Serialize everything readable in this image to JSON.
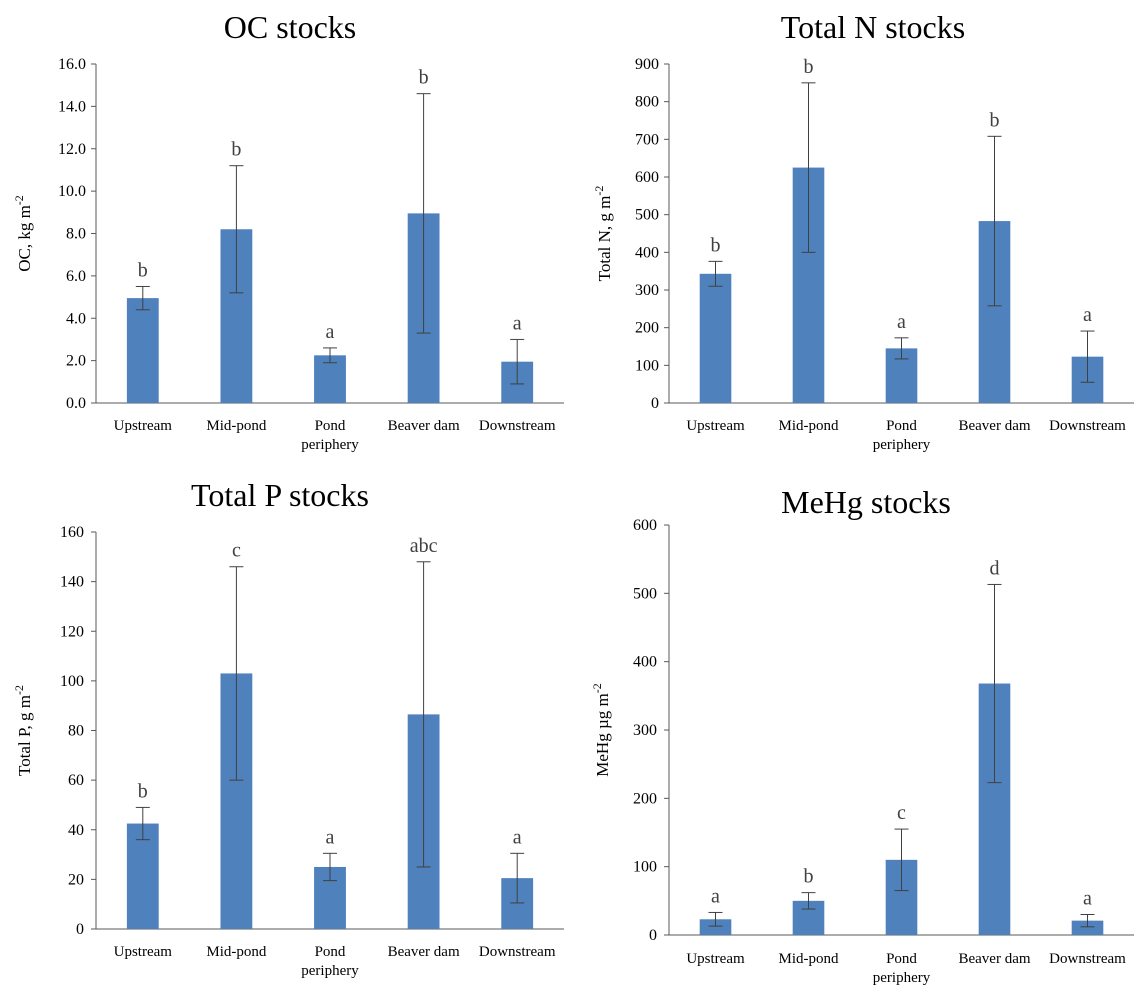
{
  "chart_data": [
    {
      "type": "bar",
      "title": "OC stocks",
      "ylabel": "OC, kg m",
      "ylabel_sup": "-2",
      "xlabel": "",
      "categories": [
        [
          "Upstream"
        ],
        [
          "Mid-pond"
        ],
        [
          "Pond",
          "periphery"
        ],
        [
          "Beaver dam"
        ],
        [
          "Downstream"
        ]
      ],
      "values": [
        4.95,
        8.2,
        2.25,
        8.95,
        1.95
      ],
      "error": [
        0.55,
        3.0,
        0.35,
        5.65,
        1.05
      ],
      "sig_letters": [
        "b",
        "b",
        "a",
        "b",
        "a"
      ],
      "ylim": [
        0,
        16
      ],
      "yticks": [
        "0.0",
        "2.0",
        "4.0",
        "6.0",
        "8.0",
        "10.0",
        "12.0",
        "14.0",
        "16.0"
      ],
      "grid": false,
      "legend": "none",
      "bar_color": "#4f81bd"
    },
    {
      "type": "bar",
      "title": "Total N stocks",
      "ylabel": "Total N, g m",
      "ylabel_sup": "-2",
      "xlabel": "",
      "categories": [
        [
          "Upstream"
        ],
        [
          "Mid-pond"
        ],
        [
          "Pond",
          "periphery"
        ],
        [
          "Beaver dam"
        ],
        [
          "Downstream"
        ]
      ],
      "values": [
        343,
        625,
        145,
        483,
        123
      ],
      "error": [
        33,
        225,
        28,
        225,
        68
      ],
      "sig_letters": [
        "b",
        "b",
        "a",
        "b",
        "a"
      ],
      "ylim": [
        0,
        900
      ],
      "yticks": [
        "0",
        "100",
        "200",
        "300",
        "400",
        "500",
        "600",
        "700",
        "800",
        "900"
      ],
      "grid": false,
      "legend": "none",
      "bar_color": "#4f81bd"
    },
    {
      "type": "bar",
      "title": "Total P stocks",
      "ylabel": "Total P, g m",
      "ylabel_sup": "-2",
      "xlabel": "",
      "categories": [
        [
          "Upstream"
        ],
        [
          "Mid-pond"
        ],
        [
          "Pond",
          "periphery"
        ],
        [
          "Beaver dam"
        ],
        [
          "Downstream"
        ]
      ],
      "values": [
        42.5,
        103,
        25,
        86.5,
        20.5
      ],
      "error": [
        6.5,
        43,
        5.5,
        61.5,
        10
      ],
      "sig_letters": [
        "b",
        "c",
        "a",
        "abc",
        "a"
      ],
      "ylim": [
        0,
        160
      ],
      "yticks": [
        "0",
        "20",
        "40",
        "60",
        "80",
        "100",
        "120",
        "140",
        "160"
      ],
      "grid": false,
      "legend": "none",
      "bar_color": "#4f81bd"
    },
    {
      "type": "bar",
      "title": "MeHg stocks",
      "ylabel": "MeHg µg m",
      "ylabel_sup": "-2",
      "xlabel": "",
      "categories": [
        [
          "Upstream"
        ],
        [
          "Mid-pond"
        ],
        [
          "Pond",
          "periphery"
        ],
        [
          "Beaver dam"
        ],
        [
          "Downstream"
        ]
      ],
      "values": [
        23,
        50,
        110,
        368,
        21
      ],
      "error": [
        10,
        12,
        45,
        145,
        9
      ],
      "sig_letters": [
        "a",
        "b",
        "c",
        "d",
        "a"
      ],
      "ylim": [
        0,
        600
      ],
      "yticks": [
        "0",
        "100",
        "200",
        "300",
        "400",
        "500",
        "600"
      ],
      "grid": false,
      "legend": "none",
      "bar_color": "#4f81bd"
    }
  ]
}
